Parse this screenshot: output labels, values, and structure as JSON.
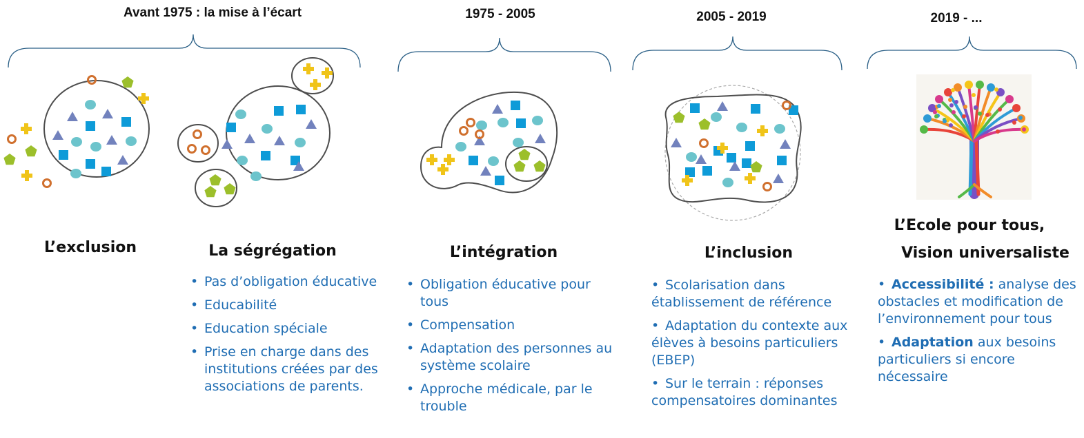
{
  "periods": [
    {
      "label": "Avant 1975 : la mise à l’écart"
    },
    {
      "label": "1975 - 2005"
    },
    {
      "label": "2005 - 2019"
    },
    {
      "label": "2019 - ..."
    }
  ],
  "stages": {
    "exclusion": {
      "title": "L’exclusion"
    },
    "segregation": {
      "title": "La ségrégation",
      "items": [
        "Pas d’obligation éducative",
        "Educabilité",
        "Education spéciale",
        "Prise en charge dans des institutions créées par des associations de parents."
      ]
    },
    "integration": {
      "title": "L’intégration",
      "items": [
        "Obligation éducative pour tous",
        "Compensation",
        "Adaptation des personnes au système scolaire",
        "Approche médicale, par le trouble"
      ]
    },
    "inclusion": {
      "title": "L’inclusion",
      "items": [
        "Scolarisation dans établissement de référence",
        "Adaptation du contexte aux élèves à besoins particuliers (EBEP)",
        "Sur le terrain : réponses compensatoires dominantes"
      ]
    },
    "universal": {
      "title1": "L’Ecole pour tous,",
      "title2": "Vision universaliste",
      "items": [
        {
          "bold": "Accessibilité :",
          "text": " analyse des obstacles et modification de l’environnement pour tous"
        },
        {
          "bold": "Adaptation",
          "text": " aux besoins particuliers si encore nécessaire"
        }
      ]
    }
  },
  "colors": {
    "text_blue": "#1f6db3",
    "brace": "#2a5f86",
    "circle": "#4d4d4d",
    "square": "#0e9bd8",
    "disc": "#6cc4cc",
    "triangle": "#7282bd",
    "ring": "#d0702e",
    "cross": "#f0c419",
    "pentagon": "#9cbf2b"
  },
  "icons": {
    "tree": "colorful-hands-tree-illustration"
  }
}
